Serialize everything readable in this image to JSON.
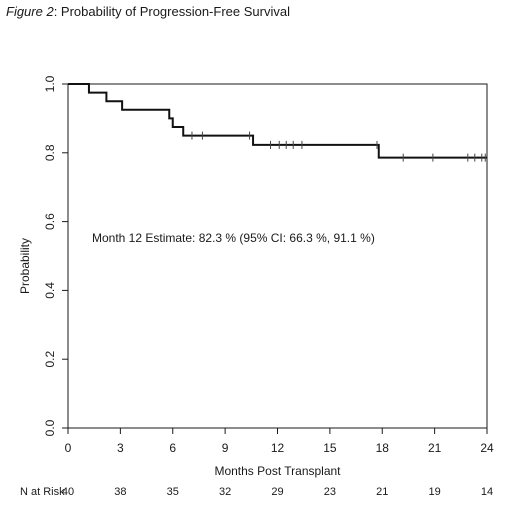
{
  "figure": {
    "label": "Figure 2",
    "title": ": Probability of Progression-Free Survival"
  },
  "chart_data": {
    "type": "line",
    "subtype": "kaplan-meier-step",
    "xlabel": "Months Post Transplant",
    "ylabel": "Probability",
    "xlim": [
      0,
      24
    ],
    "ylim": [
      0,
      1
    ],
    "x_ticks": [
      0,
      3,
      6,
      9,
      12,
      15,
      18,
      21,
      24
    ],
    "y_ticks": [
      "0.0",
      "0.2",
      "0.4",
      "0.6",
      "0.8",
      "1.0"
    ],
    "grid": false,
    "line_color": "#111111",
    "annotation": "Month 12 Estimate: 82.3 % (95% CI: 66.3 %, 91.1 %)",
    "step_points": [
      {
        "x": 0,
        "y": 1.0
      },
      {
        "x": 1.2,
        "y": 0.975
      },
      {
        "x": 2.2,
        "y": 0.95
      },
      {
        "x": 3.1,
        "y": 0.925
      },
      {
        "x": 5.8,
        "y": 0.9
      },
      {
        "x": 6.0,
        "y": 0.875
      },
      {
        "x": 6.6,
        "y": 0.85
      },
      {
        "x": 10.6,
        "y": 0.823
      },
      {
        "x": 17.8,
        "y": 0.786
      },
      {
        "x": 24.0,
        "y": 0.786
      }
    ],
    "censor_marks": [
      {
        "x": 7.1,
        "y": 0.85
      },
      {
        "x": 7.7,
        "y": 0.85
      },
      {
        "x": 10.4,
        "y": 0.85
      },
      {
        "x": 11.6,
        "y": 0.823
      },
      {
        "x": 12.1,
        "y": 0.823
      },
      {
        "x": 12.5,
        "y": 0.823
      },
      {
        "x": 12.9,
        "y": 0.823
      },
      {
        "x": 13.4,
        "y": 0.823
      },
      {
        "x": 17.7,
        "y": 0.823
      },
      {
        "x": 19.2,
        "y": 0.786
      },
      {
        "x": 20.9,
        "y": 0.786
      },
      {
        "x": 22.9,
        "y": 0.786
      },
      {
        "x": 23.3,
        "y": 0.786
      },
      {
        "x": 23.7,
        "y": 0.786
      },
      {
        "x": 23.9,
        "y": 0.786
      }
    ],
    "at_risk": {
      "label": "N at Risk",
      "x": [
        0,
        3,
        6,
        9,
        12,
        15,
        18,
        21,
        24
      ],
      "values": [
        40,
        38,
        35,
        32,
        29,
        23,
        21,
        19,
        14
      ]
    }
  }
}
